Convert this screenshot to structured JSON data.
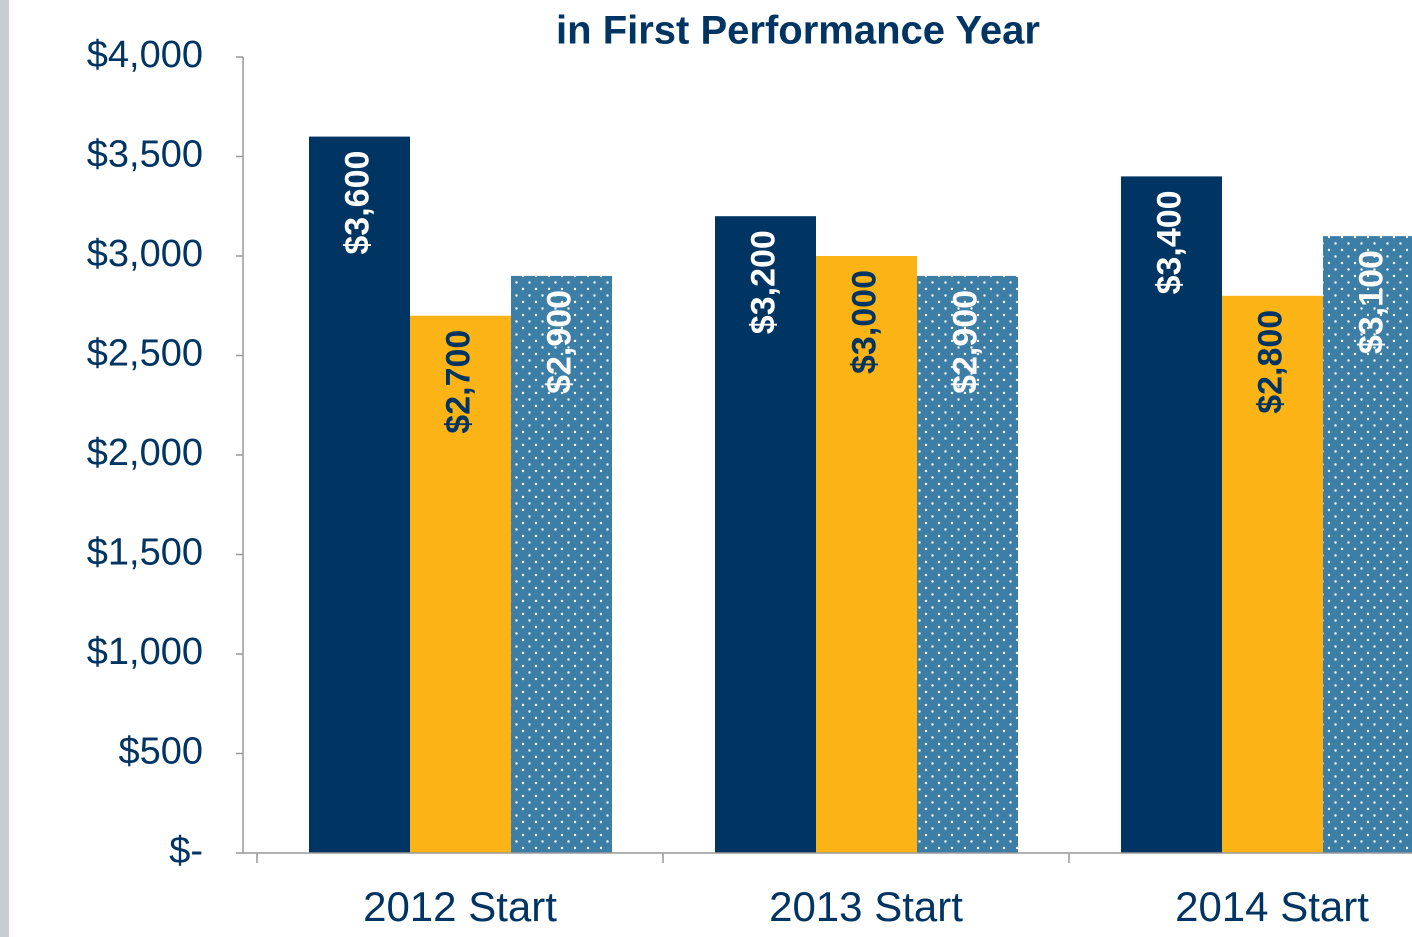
{
  "chart_data": {
    "type": "bar",
    "title": "in First Performance Year",
    "categories": [
      "2012 Start",
      "2013 Start",
      "2014 Start"
    ],
    "series": [
      {
        "color": "#003462",
        "label_color": "#ffffff",
        "values": [
          3600,
          3200,
          3400
        ],
        "value_labels": [
          "$3,600",
          "$3,200",
          "$3,400"
        ]
      },
      {
        "color": "#fbb316",
        "label_color": "#003462",
        "values": [
          2700,
          3000,
          2800
        ],
        "value_labels": [
          "$2,700",
          "$3,000",
          "$2,800"
        ]
      },
      {
        "color": "#3d7ea6",
        "label_color": "#ffffff",
        "pattern": "dots",
        "values": [
          2900,
          2900,
          3100
        ],
        "value_labels": [
          "$2,900",
          "$2,900",
          "$3,100"
        ]
      }
    ],
    "ylim": [
      0,
      4000
    ],
    "yticks": [
      {
        "value": 0,
        "label": "$-"
      },
      {
        "value": 500,
        "label": "$500"
      },
      {
        "value": 1000,
        "label": "$1,000"
      },
      {
        "value": 1500,
        "label": "$1,500"
      },
      {
        "value": 2000,
        "label": "$2,000"
      },
      {
        "value": 2500,
        "label": "$2,500"
      },
      {
        "value": 3000,
        "label": "$3,000"
      },
      {
        "value": 3500,
        "label": "$3,500"
      },
      {
        "value": 4000,
        "label": "$4,000"
      }
    ]
  }
}
